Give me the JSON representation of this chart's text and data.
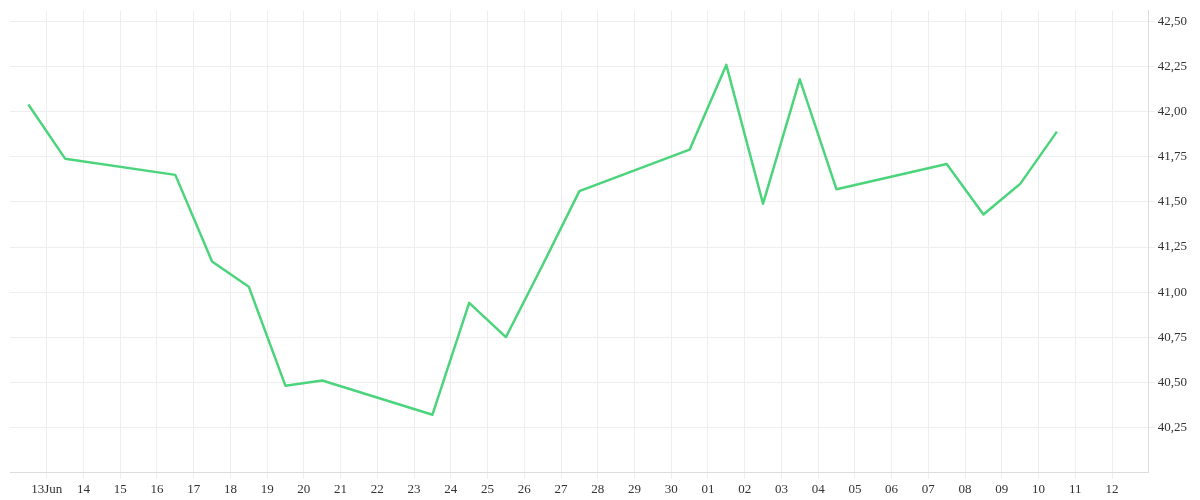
{
  "chart_data": {
    "type": "line",
    "grid": true,
    "marker": "none",
    "line_style": "solid",
    "x": [
      "--06-12T12:00",
      "--06-13T12:00",
      "--06-16T12:00",
      "--06-17T12:00",
      "--06-18T12:00",
      "--06-19T12:00",
      "--06-20T12:00",
      "--06-23T12:00",
      "--06-24T12:00",
      "--06-25T12:00",
      "--06-26T12:00",
      "--06-27T12:00",
      "--06-30T12:00",
      "--07-01T12:00",
      "--07-02T12:00",
      "--07-03T12:00",
      "--07-04T12:00",
      "--07-07T12:00",
      "--07-08T12:00",
      "--07-09T12:00",
      "--07-10T12:00"
    ],
    "series": [
      {
        "color": "#4cd47c",
        "values": [
          42.04,
          41.74,
          41.65,
          41.17,
          41.03,
          40.48,
          40.51,
          40.32,
          40.94,
          40.75,
          41.15,
          41.56,
          41.79,
          42.26,
          41.49,
          42.18,
          41.57,
          41.71,
          41.43,
          41.6,
          41.89
        ]
      }
    ],
    "xlim": [
      "--06-12",
      "--07-13"
    ],
    "xticks": [
      {
        "value": "--06-13",
        "label": "13Jun"
      },
      {
        "value": "--06-14",
        "label": "14"
      },
      {
        "value": "--06-15",
        "label": "15"
      },
      {
        "value": "--06-16",
        "label": "16"
      },
      {
        "value": "--06-17",
        "label": "17"
      },
      {
        "value": "--06-18",
        "label": "18"
      },
      {
        "value": "--06-19",
        "label": "19"
      },
      {
        "value": "--06-20",
        "label": "20"
      },
      {
        "value": "--06-21",
        "label": "21"
      },
      {
        "value": "--06-22",
        "label": "22"
      },
      {
        "value": "--06-23",
        "label": "23"
      },
      {
        "value": "--06-24",
        "label": "24"
      },
      {
        "value": "--06-25",
        "label": "25"
      },
      {
        "value": "--06-26",
        "label": "26"
      },
      {
        "value": "--06-27",
        "label": "27"
      },
      {
        "value": "--06-28",
        "label": "28"
      },
      {
        "value": "--06-29",
        "label": "29"
      },
      {
        "value": "--06-30",
        "label": "30"
      },
      {
        "value": "--07-01",
        "label": "01"
      },
      {
        "value": "--07-02",
        "label": "02"
      },
      {
        "value": "--07-03",
        "label": "03"
      },
      {
        "value": "--07-04",
        "label": "04"
      },
      {
        "value": "--07-05",
        "label": "05"
      },
      {
        "value": "--07-06",
        "label": "06"
      },
      {
        "value": "--07-07",
        "label": "07"
      },
      {
        "value": "--07-08",
        "label": "08"
      },
      {
        "value": "--07-09",
        "label": "09"
      },
      {
        "value": "--07-10",
        "label": "10"
      },
      {
        "value": "--07-11",
        "label": "11"
      },
      {
        "value": "--07-12",
        "label": "12"
      }
    ],
    "ylim": [
      40,
      42.56
    ],
    "yticks": [
      {
        "value": 40.25,
        "label": "40,25"
      },
      {
        "value": 40.5,
        "label": "40,50"
      },
      {
        "value": 40.75,
        "label": "40,75"
      },
      {
        "value": 41,
        "label": "41,00"
      },
      {
        "value": 41.25,
        "label": "41,25"
      },
      {
        "value": 41.5,
        "label": "41,50"
      },
      {
        "value": 41.75,
        "label": "41,75"
      },
      {
        "value": 42,
        "label": "42,00"
      },
      {
        "value": 42.25,
        "label": "42,25"
      },
      {
        "value": 42.5,
        "label": "42,50"
      }
    ]
  }
}
